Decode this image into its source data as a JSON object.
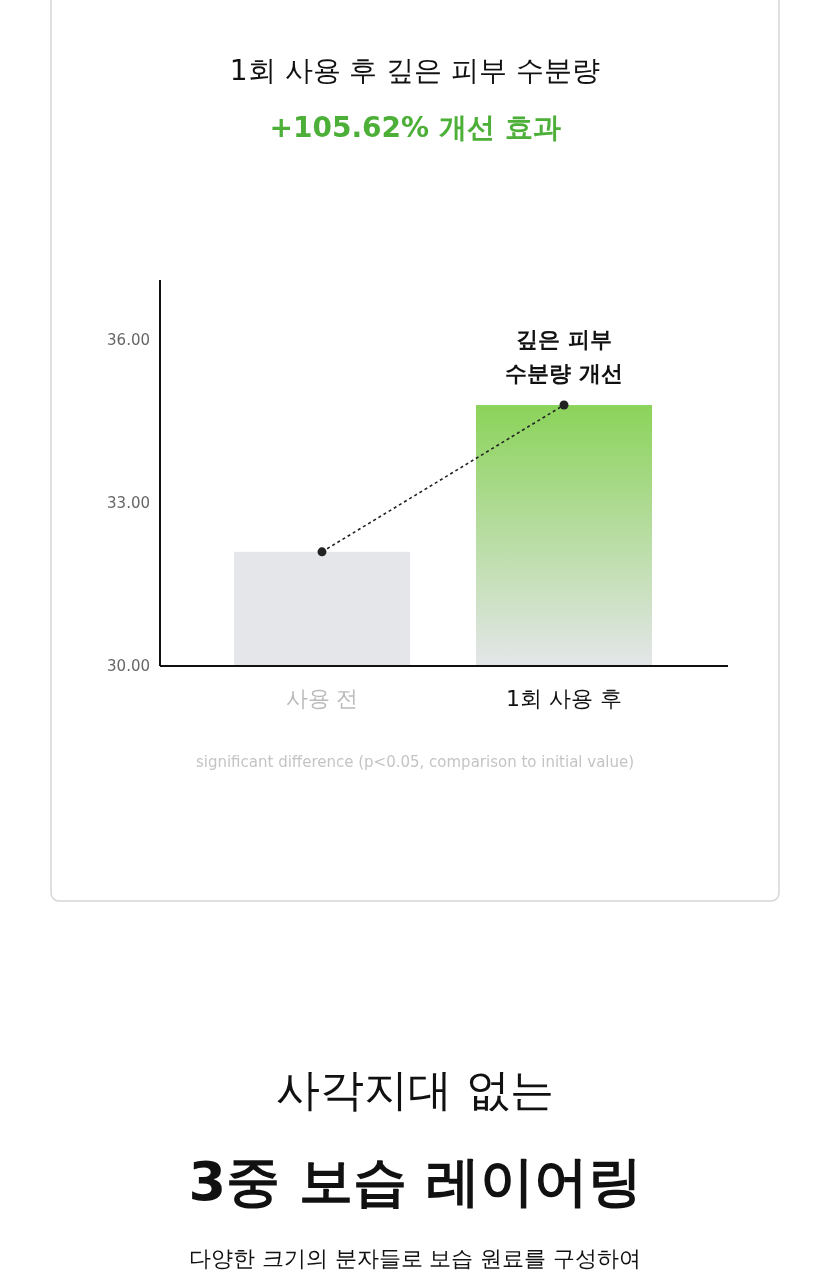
{
  "chart_data": {
    "type": "bar",
    "title": "1회 사용 후 깊은 피부 수분량",
    "subtitle": "+105.62% 개선 효과",
    "categories": [
      "사용 전",
      "1회 사용 후"
    ],
    "series": [
      {
        "colors": [
          "#e4e6e9",
          "#8bd35a"
        ],
        "values": [
          32.1,
          34.8
        ]
      },
      {
        "type": "line",
        "color": "#222222",
        "values": [
          32.1,
          34.8
        ],
        "line_style": "dotted",
        "marker": "circle"
      }
    ],
    "ylim": [
      30,
      37.1
    ],
    "yticks": [
      {
        "value": 30,
        "label": "30.00"
      },
      {
        "value": 33,
        "label": "33.00"
      },
      {
        "value": 36,
        "label": "36.00"
      }
    ],
    "grid": false,
    "annotations": [
      {
        "text": "깊은 피부\n수분량 개선",
        "x": "1회 사용 후",
        "y": 34.8
      },
      "significant difference (p<0.05, comparison to initial value)",
      "사각지대 없는",
      "3중 보습 레이어링",
      "다양한 크기의 분자들로 보습 원료를 구성하여"
    ]
  }
}
